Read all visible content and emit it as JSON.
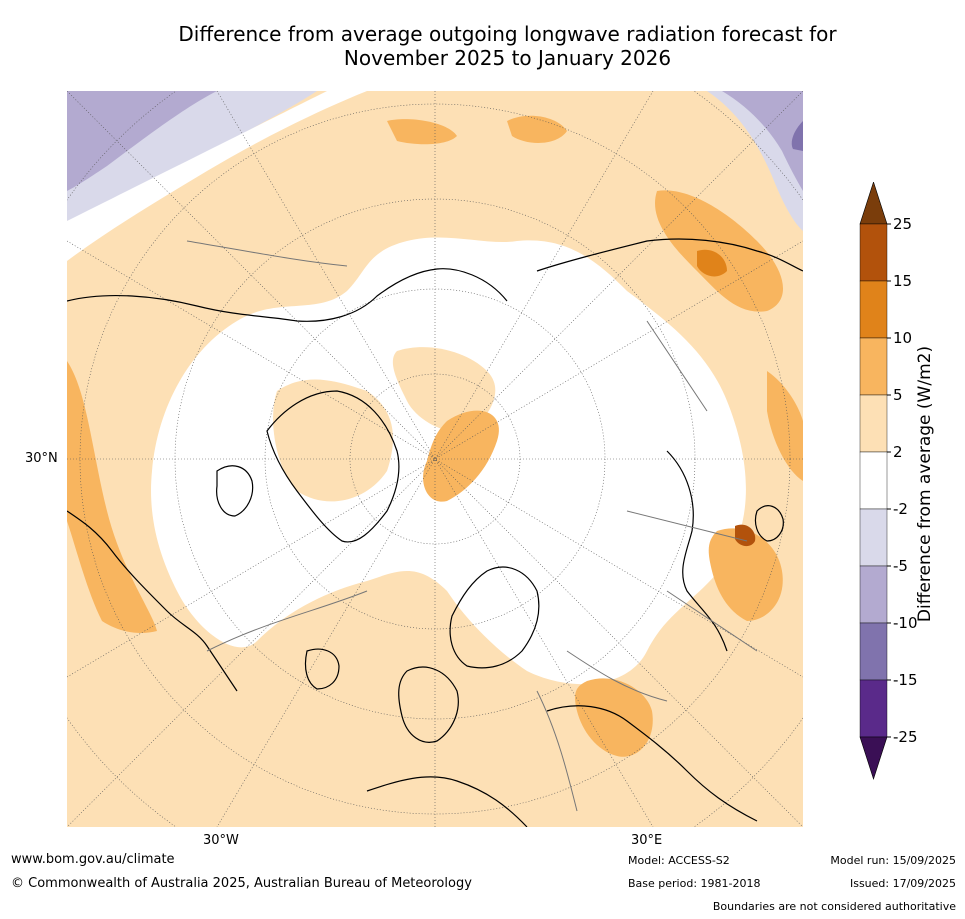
{
  "title_line1": "Difference from average outgoing longwave radiation forecast for",
  "title_line2": "November 2025 to January 2026",
  "map": {
    "labels": {
      "lat30": "30°N",
      "lon30w": "30°W",
      "lon30e": "30°E"
    }
  },
  "colorbar": {
    "title": "Difference from average (W/m2)",
    "ticks": [
      "25",
      "15",
      "10",
      "5",
      "2",
      "-2",
      "-5",
      "-10",
      "-15",
      "-25"
    ],
    "colors": [
      "#7a3d0b",
      "#b2520c",
      "#e0831a",
      "#f8b55f",
      "#fde0b5",
      "#ffffff",
      "#d9d9ea",
      "#b3aad0",
      "#8073ad",
      "#5a2a8a",
      "#3a0f55"
    ]
  },
  "footer": {
    "url": "www.bom.gov.au/climate",
    "copyright": "© Commonwealth of Australia 2025, Australian Bureau of Meteorology",
    "model": "Model: ACCESS-S2",
    "base_period": "Base period: 1981-2018",
    "model_run": "Model run: 15/09/2025",
    "issued": "Issued: 17/09/2025",
    "boundaries": "Boundaries are not considered authoritative"
  }
}
